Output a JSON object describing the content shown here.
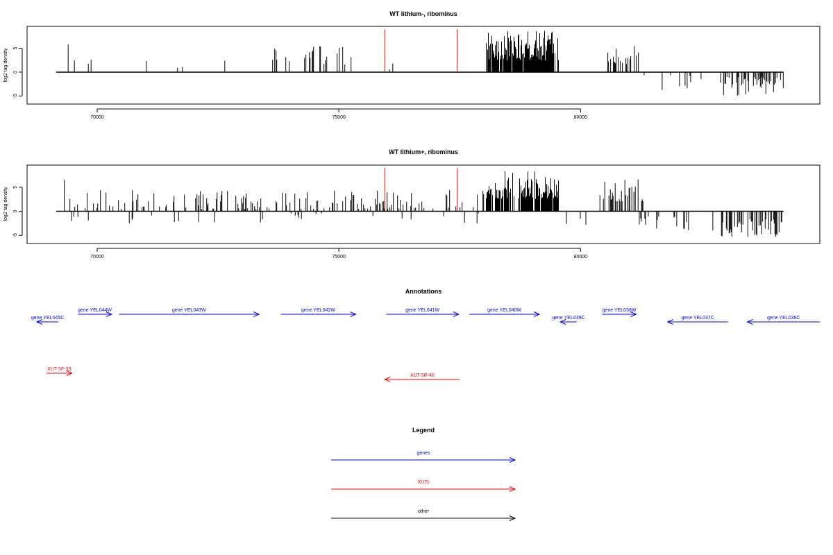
{
  "colors": {
    "genes": "#0000ff",
    "xuts": "#ff0000",
    "other": "#000000",
    "signal": "#000000",
    "marker": "#ff0000"
  },
  "chart_data": [
    {
      "type": "bar",
      "title": "WT lithium-, ribominus",
      "xlabel": "",
      "ylabel": "log2 tag density",
      "xlim": [
        68550,
        84950
      ],
      "ylim": [
        -6.7,
        9.6
      ],
      "xticks": [
        70000,
        75000,
        80000
      ],
      "xtick_labels": [
        "70000",
        "75000",
        "80000"
      ],
      "yticks": [
        -5,
        0,
        5
      ],
      "ytick_labels": [
        "-5",
        "0",
        "5"
      ],
      "baseline_range": [
        69150,
        84200
      ],
      "markers": [
        75950,
        77450
      ],
      "marker_top": 9.0,
      "signal_segments": [
        {
          "from": 69400,
          "to": 70270,
          "sign": 1,
          "min": 1,
          "max": 3.2,
          "peak": 5.8,
          "density": 0.04
        },
        {
          "from": 70270,
          "to": 73300,
          "sign": 1,
          "min": 0.8,
          "max": 3.6,
          "density": 0.012
        },
        {
          "from": 73300,
          "to": 73500,
          "sign": 1,
          "min": 1,
          "max": 3.4,
          "density": 0.04
        },
        {
          "from": 73600,
          "to": 75400,
          "sign": 1,
          "min": 1,
          "max": 5.6,
          "density": 0.18
        },
        {
          "from": 75800,
          "to": 76200,
          "sign": 1,
          "min": 0.5,
          "max": 3,
          "density": 0.04
        },
        {
          "from": 76200,
          "to": 76900,
          "sign": -1,
          "min": 1,
          "max": 2.6,
          "density": 0.01
        },
        {
          "from": 76400,
          "to": 77600,
          "sign": 1,
          "min": 0.5,
          "max": 2,
          "density": 0.006
        },
        {
          "from": 78050,
          "to": 79550,
          "sign": 1,
          "min": 2.5,
          "max": 8.7,
          "density": 0.9
        },
        {
          "from": 80450,
          "to": 81200,
          "sign": 1,
          "min": 1.5,
          "max": 5.6,
          "density": 0.25
        },
        {
          "from": 81200,
          "to": 82800,
          "sign": -1,
          "min": 0.6,
          "max": 4,
          "density": 0.06
        },
        {
          "from": 82900,
          "to": 84200,
          "sign": -1,
          "min": 1,
          "max": 5,
          "density": 0.4
        }
      ]
    },
    {
      "type": "bar",
      "title": "WT lithium+, ribominus",
      "xlabel": "",
      "ylabel": "log2 tag density",
      "xlim": [
        68550,
        84950
      ],
      "ylim": [
        -6.7,
        9.6
      ],
      "xticks": [
        70000,
        75000,
        80000
      ],
      "xtick_labels": [
        "70000",
        "75000",
        "80000"
      ],
      "yticks": [
        -5,
        0,
        5
      ],
      "ytick_labels": [
        "-5",
        "0",
        "5"
      ],
      "baseline_range": [
        69150,
        84200
      ],
      "markers": [
        75950,
        77450
      ],
      "marker_top": 9.0,
      "signal_segments": [
        {
          "from": 69250,
          "to": 78000,
          "sign": 1,
          "min": 0.5,
          "max": 4.5,
          "peak": 6.5,
          "density": 0.22
        },
        {
          "from": 69400,
          "to": 78000,
          "sign": -1,
          "min": 0.4,
          "max": 2.5,
          "density": 0.04
        },
        {
          "from": 78050,
          "to": 79550,
          "sign": 1,
          "min": 2.5,
          "max": 8.5,
          "density": 0.9
        },
        {
          "from": 79550,
          "to": 80200,
          "sign": -1,
          "min": 0.5,
          "max": 3.2,
          "density": 0.08
        },
        {
          "from": 80400,
          "to": 81300,
          "sign": 1,
          "min": 2,
          "max": 6.8,
          "density": 0.4
        },
        {
          "from": 81200,
          "to": 82800,
          "sign": -1,
          "min": 0.8,
          "max": 4.2,
          "density": 0.18
        },
        {
          "from": 82900,
          "to": 84200,
          "sign": -1,
          "min": 1.5,
          "max": 5.8,
          "density": 0.5
        }
      ]
    }
  ],
  "annotations": {
    "title": "Annotations",
    "xlim": [
      68550,
      84950
    ],
    "features": [
      {
        "label": "gene YEL045C",
        "kind": "gene",
        "strand": "-",
        "start": 68750,
        "end": 69200,
        "row": 1
      },
      {
        "label": "gene YEL044W",
        "kind": "gene",
        "strand": "+",
        "start": 69600,
        "end": 70300,
        "row": 0
      },
      {
        "label": "gene YEL043W",
        "kind": "gene",
        "strand": "+",
        "start": 70450,
        "end": 73350,
        "row": 0
      },
      {
        "label": "gene YEL042W",
        "kind": "gene",
        "strand": "+",
        "start": 73800,
        "end": 75350,
        "row": 0
      },
      {
        "label": "gene YEL041W",
        "kind": "gene",
        "strand": "+",
        "start": 75980,
        "end": 77480,
        "row": 0
      },
      {
        "label": "gene YEL040W",
        "kind": "gene",
        "strand": "+",
        "start": 77700,
        "end": 79150,
        "row": 0
      },
      {
        "label": "gene YEL039C",
        "kind": "gene",
        "strand": "-",
        "start": 79580,
        "end": 79920,
        "row": 1
      },
      {
        "label": "gene YEL038W",
        "kind": "gene",
        "strand": "+",
        "start": 80450,
        "end": 81150,
        "row": 0
      },
      {
        "label": "gene YEL037C",
        "kind": "gene",
        "strand": "-",
        "start": 81800,
        "end": 83050,
        "row": 1
      },
      {
        "label": "gene YEL036C",
        "kind": "gene",
        "strand": "-",
        "start": 83450,
        "end": 84950,
        "row": 1
      },
      {
        "label": "XUT 5F-33",
        "kind": "xut",
        "strand": "+",
        "start": 68950,
        "end": 69480,
        "row": 2
      },
      {
        "label": "XUT 5R-40",
        "kind": "xut",
        "strand": "-",
        "start": 75950,
        "end": 77500,
        "row": 3
      }
    ]
  },
  "legend": {
    "title": "Legend",
    "items": [
      {
        "label": "genes",
        "kind": "gene"
      },
      {
        "label": "XUTs",
        "kind": "xut"
      },
      {
        "label": "other",
        "kind": "other"
      }
    ]
  }
}
